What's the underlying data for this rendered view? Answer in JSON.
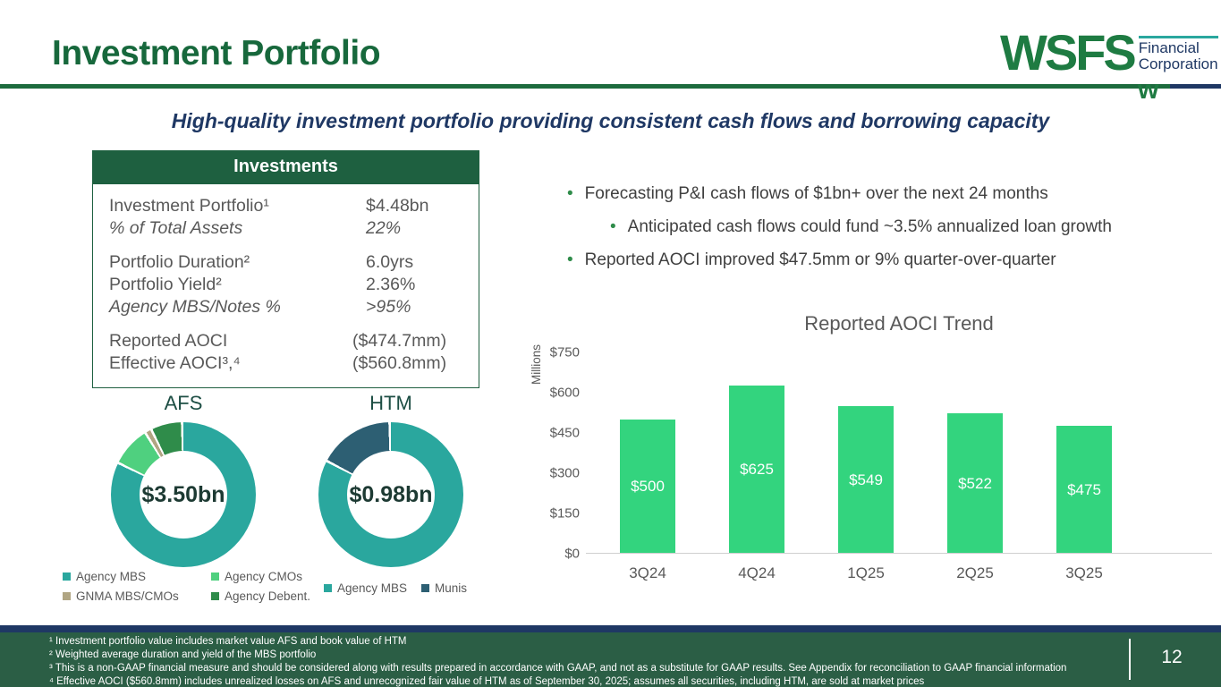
{
  "header": {
    "title": "Investment Portfolio",
    "logo": {
      "brand": "WSFS",
      "line1": "Financial",
      "line2": "Corporation",
      "w_mark": "w"
    }
  },
  "subtitle": "High-quality investment portfolio providing consistent cash flows and borrowing capacity",
  "investments_table": {
    "header": "Investments",
    "rows": [
      {
        "label": "Investment Portfolio¹",
        "value": "$4.48bn",
        "italic": false,
        "group": 1
      },
      {
        "label": "% of Total Assets",
        "value": "22%",
        "italic": true,
        "group": 1
      },
      {
        "label": "Portfolio Duration²",
        "value": "6.0yrs",
        "italic": false,
        "group": 2
      },
      {
        "label": "Portfolio Yield²",
        "value": "2.36%",
        "italic": false,
        "group": 2
      },
      {
        "label": "Agency MBS/Notes %",
        "value": ">95%",
        "italic": true,
        "group": 2
      },
      {
        "label": "Reported AOCI",
        "value": "($474.7mm)",
        "italic": false,
        "group": 3
      },
      {
        "label": "Effective AOCI³,⁴",
        "value": "($560.8mm)",
        "italic": false,
        "group": 3
      }
    ]
  },
  "bullets": {
    "item1": "Forecasting P&I cash flows of $1bn+ over the next 24 months",
    "sub1": "Anticipated cash flows could fund  ~3.5% annualized loan growth",
    "item2": "Reported AOCI improved $47.5mm or 9% quarter-over-quarter"
  },
  "chart_data": [
    {
      "id": "afs",
      "type": "pie",
      "title": "AFS",
      "center_label": "$3.50bn",
      "labels": [
        "Agency MBS",
        "Agency CMOs",
        "GNMA MBS/CMOs",
        "Agency Debent."
      ],
      "values": [
        82.5,
        9,
        1.5,
        7
      ],
      "colors": [
        "#2AA79E",
        "#4FD07F",
        "#B0A583",
        "#2F8C4A"
      ],
      "note": "share of slices estimated from donut arc angles; total AFS = $3.50bn"
    },
    {
      "id": "htm",
      "type": "pie",
      "title": "HTM",
      "center_label": "$0.98bn",
      "labels": [
        "Agency MBS",
        "Munis"
      ],
      "values": [
        83,
        17
      ],
      "colors": [
        "#2AA79E",
        "#2D5F73"
      ],
      "note": "share of slices estimated from donut arc angles; total HTM = $0.98bn"
    },
    {
      "id": "aoci",
      "type": "bar",
      "title": "Reported AOCI Trend",
      "ylabel": "Millions",
      "categories": [
        "3Q24",
        "4Q24",
        "1Q25",
        "2Q25",
        "3Q25"
      ],
      "values": [
        500,
        625,
        549,
        522,
        475
      ],
      "data_labels": [
        "$500",
        "$625",
        "$549",
        "$522",
        "$475"
      ],
      "ytick_labels": [
        "$750",
        "$600",
        "$450",
        "$300",
        "$150",
        "$0"
      ],
      "ylim": [
        0,
        750
      ],
      "grid": false,
      "bar_color": "#33D47E",
      "label_color": "#ffffff"
    }
  ],
  "footer": {
    "footnotes": [
      "¹ Investment portfolio value includes market value AFS and book value of HTM",
      "² Weighted average duration and yield of the MBS portfolio",
      "³ This is a non-GAAP financial measure and should be considered along with results prepared in accordance with GAAP, and not as a substitute for GAAP results.  See Appendix for reconciliation to GAAP financial information",
      "⁴ Effective AOCI ($560.8mm) includes unrealized losses on AFS and unrecognized fair value of HTM as of September 30, 2025; assumes all securities, including HTM, are sold at market prices"
    ],
    "page_number": "12"
  }
}
